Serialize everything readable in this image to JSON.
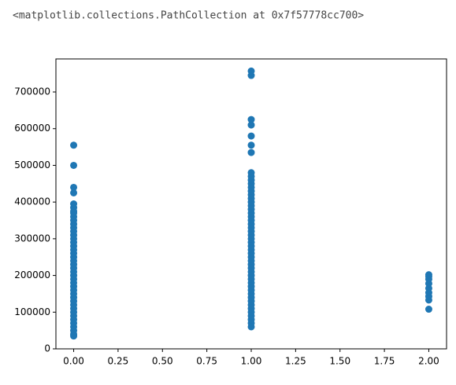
{
  "output_text": "<matplotlib.collections.PathCollection at 0x7f57778cc700>",
  "chart_data": {
    "type": "scatter",
    "color": "#1f77b4",
    "xlim": [
      -0.1,
      2.1
    ],
    "ylim": [
      0,
      790000
    ],
    "xticks": [
      {
        "value": 0,
        "label": "0.00"
      },
      {
        "value": 0.25,
        "label": "0.25"
      },
      {
        "value": 0.5,
        "label": "0.50"
      },
      {
        "value": 0.75,
        "label": "0.75"
      },
      {
        "value": 1,
        "label": "1.00"
      },
      {
        "value": 1.25,
        "label": "1.25"
      },
      {
        "value": 1.5,
        "label": "1.50"
      },
      {
        "value": 1.75,
        "label": "1.75"
      },
      {
        "value": 2,
        "label": "2.00"
      }
    ],
    "yticks": [
      0,
      100000,
      200000,
      300000,
      400000,
      500000,
      600000,
      700000
    ],
    "x": [
      0,
      0,
      0,
      0,
      0,
      0,
      0,
      0,
      0,
      0,
      0,
      0,
      0,
      0,
      0,
      0,
      0,
      0,
      0,
      0,
      0,
      0,
      0,
      0,
      0,
      0,
      0,
      0,
      0,
      0,
      0,
      0,
      0,
      0,
      0,
      0,
      0,
      0,
      0,
      0,
      0,
      0,
      1,
      1,
      1,
      1,
      1,
      1,
      1,
      1,
      1,
      1,
      1,
      1,
      1,
      1,
      1,
      1,
      1,
      1,
      1,
      1,
      1,
      1,
      1,
      1,
      1,
      1,
      1,
      1,
      1,
      1,
      1,
      1,
      1,
      1,
      1,
      1,
      1,
      1,
      1,
      1,
      1,
      1,
      1,
      1,
      1,
      1,
      1,
      1,
      1,
      1,
      2,
      2,
      2,
      2,
      2,
      2,
      2,
      2,
      2
    ],
    "values": [
      35000,
      40000,
      50000,
      60000,
      70000,
      80000,
      90000,
      100000,
      110000,
      120000,
      130000,
      140000,
      150000,
      160000,
      170000,
      180000,
      190000,
      200000,
      210000,
      220000,
      230000,
      240000,
      250000,
      260000,
      270000,
      280000,
      290000,
      300000,
      310000,
      320000,
      330000,
      340000,
      350000,
      360000,
      370000,
      375000,
      385000,
      395000,
      425000,
      440000,
      500000,
      555000,
      60000,
      70000,
      80000,
      90000,
      100000,
      110000,
      120000,
      130000,
      140000,
      150000,
      160000,
      170000,
      180000,
      190000,
      200000,
      210000,
      220000,
      230000,
      240000,
      250000,
      260000,
      270000,
      280000,
      290000,
      300000,
      310000,
      320000,
      330000,
      340000,
      350000,
      360000,
      370000,
      380000,
      390000,
      400000,
      410000,
      420000,
      430000,
      440000,
      450000,
      460000,
      470000,
      480000,
      535000,
      555000,
      580000,
      610000,
      625000,
      745000,
      757000,
      108000,
      133000,
      143000,
      153000,
      165000,
      178000,
      190000,
      197000,
      202000
    ]
  }
}
